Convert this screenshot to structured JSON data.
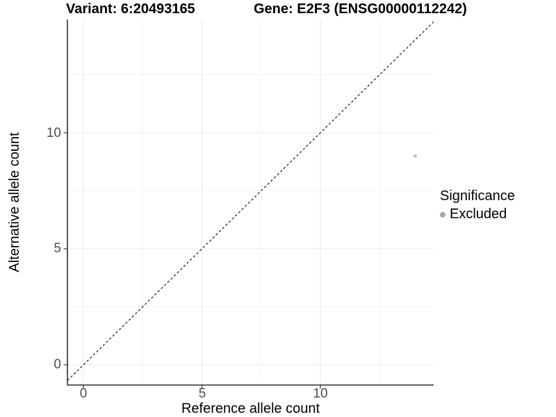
{
  "chart_data": {
    "type": "scatter",
    "titles": [
      "Variant: 6:20493165",
      "Gene: E2F3 (ENSG00000112242)"
    ],
    "xlabel": "Reference allele count",
    "ylabel": "Alternative allele count",
    "xlim": [
      -0.7,
      14.8
    ],
    "ylim": [
      -0.9,
      14.9
    ],
    "x_ticks": [
      0,
      5,
      10
    ],
    "y_ticks": [
      0,
      5,
      10
    ],
    "x_tick_labels": [
      "0",
      "5",
      "10"
    ],
    "y_tick_labels": [
      "0",
      "5",
      "10"
    ],
    "x_minor_ticks": [
      2.5,
      7.5,
      12.5
    ],
    "y_minor_ticks": [
      2.5,
      7.5,
      12.5
    ],
    "grid": true,
    "points": [
      {
        "x": 14,
        "y": 9,
        "label": "Excluded",
        "color": "#c2c2c2",
        "size": 2.4
      }
    ],
    "reference_line": {
      "type": "identity",
      "slope": 1,
      "intercept": 0,
      "style": "dashed",
      "color": "#1a1a1a"
    },
    "legend": {
      "title": "Significance",
      "position": "right",
      "items": [
        {
          "label": "Excluded",
          "color": "#a8a8a8",
          "marker": "circle"
        }
      ]
    },
    "colors": {
      "background": "#ffffff",
      "grid_major": "#e8e8e8",
      "grid_minor": "#f4f4f4",
      "axis_line": "#2e2e2e",
      "tick_mark": "#333333",
      "tick_label": "#4d4d4d",
      "title": "#000000"
    }
  }
}
